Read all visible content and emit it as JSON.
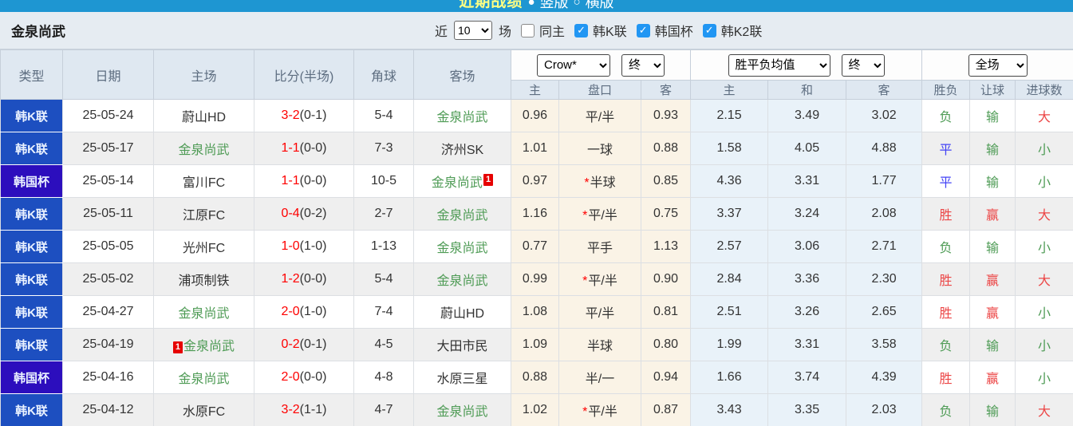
{
  "icons": {
    "check": "✓",
    "radio_on": "●",
    "radio_off": "○"
  },
  "topbar": {
    "title": "近期战绩",
    "option_vertical": "竖版",
    "option_horizontal": "横版"
  },
  "filterbar": {
    "team_title": "金泉尚武",
    "recent_label": "近",
    "recent_value": "10",
    "matches_label": "场",
    "same_home_label": "同主",
    "same_home_checked": false,
    "leagues": [
      {
        "label": "韩K联",
        "checked": true
      },
      {
        "label": "韩国杯",
        "checked": true
      },
      {
        "label": "韩K2联",
        "checked": true
      }
    ]
  },
  "table": {
    "star_glyph": "*",
    "headers": {
      "type": "类型",
      "date": "日期",
      "home": "主场",
      "score": "比分(半场)",
      "corner": "角球",
      "away": "客场",
      "asian_dropdown": "Crow*",
      "asian_stage_dropdown": "终",
      "euro_dropdown": "胜平负均值",
      "euro_stage_dropdown": "终",
      "result_dropdown": "全场",
      "asian_sub": [
        "主",
        "盘口",
        "客"
      ],
      "euro_sub": [
        "主",
        "和",
        "客"
      ],
      "result_sub": [
        "胜负",
        "让球",
        "进球数"
      ]
    },
    "colors": {
      "league_k1_bg": "#1d4fc0",
      "league_cup_bg": "#2c0ebd",
      "focus_team_green": "#4e9b55",
      "score_red": "#fe0000",
      "result_red": "#ec4545",
      "result_green": "#4e9b55",
      "result_blue": "#4343f5",
      "asian_col_bg": "#faf3e6",
      "euro_col_bg": "#e9f2f9",
      "topbar_blue": "#1e96d2"
    },
    "rows": [
      {
        "type": "韩K联",
        "type_class": "k1",
        "date": "25-05-24",
        "home": "蔚山HD",
        "home_focus": false,
        "home_badge": "",
        "score": "3-2",
        "half": "(0-1)",
        "corner": "5-4",
        "away": "金泉尚武",
        "away_focus": true,
        "away_badge": "",
        "asian_home": "0.96",
        "handicap_star": false,
        "handicap": "平/半",
        "asian_away": "0.93",
        "euro_home": "2.15",
        "euro_draw": "3.49",
        "euro_away": "3.02",
        "result_wdl": "负",
        "result_wdl_color": "green",
        "result_handicap": "输",
        "result_handicap_color": "green",
        "result_goals": "大",
        "result_goals_color": "red"
      },
      {
        "type": "韩K联",
        "type_class": "k1",
        "date": "25-05-17",
        "home": "金泉尚武",
        "home_focus": true,
        "home_badge": "",
        "score": "1-1",
        "half": "(0-0)",
        "corner": "7-3",
        "away": "济州SK",
        "away_focus": false,
        "away_badge": "",
        "asian_home": "1.01",
        "handicap_star": false,
        "handicap": "一球",
        "asian_away": "0.88",
        "euro_home": "1.58",
        "euro_draw": "4.05",
        "euro_away": "4.88",
        "result_wdl": "平",
        "result_wdl_color": "blue",
        "result_handicap": "输",
        "result_handicap_color": "green",
        "result_goals": "小",
        "result_goals_color": "green"
      },
      {
        "type": "韩国杯",
        "type_class": "cup",
        "date": "25-05-14",
        "home": "富川FC",
        "home_focus": false,
        "home_badge": "",
        "score": "1-1",
        "half": "(0-0)",
        "corner": "10-5",
        "away": "金泉尚武",
        "away_focus": true,
        "away_badge": "1",
        "asian_home": "0.97",
        "handicap_star": true,
        "handicap": "半球",
        "asian_away": "0.85",
        "euro_home": "4.36",
        "euro_draw": "3.31",
        "euro_away": "1.77",
        "result_wdl": "平",
        "result_wdl_color": "blue",
        "result_handicap": "输",
        "result_handicap_color": "green",
        "result_goals": "小",
        "result_goals_color": "green"
      },
      {
        "type": "韩K联",
        "type_class": "k1",
        "date": "25-05-11",
        "home": "江原FC",
        "home_focus": false,
        "home_badge": "",
        "score": "0-4",
        "half": "(0-2)",
        "corner": "2-7",
        "away": "金泉尚武",
        "away_focus": true,
        "away_badge": "",
        "asian_home": "1.16",
        "handicap_star": true,
        "handicap": "平/半",
        "asian_away": "0.75",
        "euro_home": "3.37",
        "euro_draw": "3.24",
        "euro_away": "2.08",
        "result_wdl": "胜",
        "result_wdl_color": "red",
        "result_handicap": "赢",
        "result_handicap_color": "red",
        "result_goals": "大",
        "result_goals_color": "red"
      },
      {
        "type": "韩K联",
        "type_class": "k1",
        "date": "25-05-05",
        "home": "光州FC",
        "home_focus": false,
        "home_badge": "",
        "score": "1-0",
        "half": "(1-0)",
        "corner": "1-13",
        "away": "金泉尚武",
        "away_focus": true,
        "away_badge": "",
        "asian_home": "0.77",
        "handicap_star": false,
        "handicap": "平手",
        "asian_away": "1.13",
        "euro_home": "2.57",
        "euro_draw": "3.06",
        "euro_away": "2.71",
        "result_wdl": "负",
        "result_wdl_color": "green",
        "result_handicap": "输",
        "result_handicap_color": "green",
        "result_goals": "小",
        "result_goals_color": "green"
      },
      {
        "type": "韩K联",
        "type_class": "k1",
        "date": "25-05-02",
        "home": "浦项制铁",
        "home_focus": false,
        "home_badge": "",
        "score": "1-2",
        "half": "(0-0)",
        "corner": "5-4",
        "away": "金泉尚武",
        "away_focus": true,
        "away_badge": "",
        "asian_home": "0.99",
        "handicap_star": true,
        "handicap": "平/半",
        "asian_away": "0.90",
        "euro_home": "2.84",
        "euro_draw": "3.36",
        "euro_away": "2.30",
        "result_wdl": "胜",
        "result_wdl_color": "red",
        "result_handicap": "赢",
        "result_handicap_color": "red",
        "result_goals": "大",
        "result_goals_color": "red"
      },
      {
        "type": "韩K联",
        "type_class": "k1",
        "date": "25-04-27",
        "home": "金泉尚武",
        "home_focus": true,
        "home_badge": "",
        "score": "2-0",
        "half": "(1-0)",
        "corner": "7-4",
        "away": "蔚山HD",
        "away_focus": false,
        "away_badge": "",
        "asian_home": "1.08",
        "handicap_star": false,
        "handicap": "平/半",
        "asian_away": "0.81",
        "euro_home": "2.51",
        "euro_draw": "3.26",
        "euro_away": "2.65",
        "result_wdl": "胜",
        "result_wdl_color": "red",
        "result_handicap": "赢",
        "result_handicap_color": "red",
        "result_goals": "小",
        "result_goals_color": "green"
      },
      {
        "type": "韩K联",
        "type_class": "k1",
        "date": "25-04-19",
        "home": "金泉尚武",
        "home_focus": true,
        "home_badge": "1",
        "score": "0-2",
        "half": "(0-1)",
        "corner": "4-5",
        "away": "大田市民",
        "away_focus": false,
        "away_badge": "",
        "asian_home": "1.09",
        "handicap_star": false,
        "handicap": "半球",
        "asian_away": "0.80",
        "euro_home": "1.99",
        "euro_draw": "3.31",
        "euro_away": "3.58",
        "result_wdl": "负",
        "result_wdl_color": "green",
        "result_handicap": "输",
        "result_handicap_color": "green",
        "result_goals": "小",
        "result_goals_color": "green"
      },
      {
        "type": "韩国杯",
        "type_class": "cup",
        "date": "25-04-16",
        "home": "金泉尚武",
        "home_focus": true,
        "home_badge": "",
        "score": "2-0",
        "half": "(0-0)",
        "corner": "4-8",
        "away": "水原三星",
        "away_focus": false,
        "away_badge": "",
        "asian_home": "0.88",
        "handicap_star": false,
        "handicap": "半/一",
        "asian_away": "0.94",
        "euro_home": "1.66",
        "euro_draw": "3.74",
        "euro_away": "4.39",
        "result_wdl": "胜",
        "result_wdl_color": "red",
        "result_handicap": "赢",
        "result_handicap_color": "red",
        "result_goals": "小",
        "result_goals_color": "green"
      },
      {
        "type": "韩K联",
        "type_class": "k1",
        "date": "25-04-12",
        "home": "水原FC",
        "home_focus": false,
        "home_badge": "",
        "score": "3-2",
        "half": "(1-1)",
        "corner": "4-7",
        "away": "金泉尚武",
        "away_focus": true,
        "away_badge": "",
        "asian_home": "1.02",
        "handicap_star": true,
        "handicap": "平/半",
        "asian_away": "0.87",
        "euro_home": "3.43",
        "euro_draw": "3.35",
        "euro_away": "2.03",
        "result_wdl": "负",
        "result_wdl_color": "green",
        "result_handicap": "输",
        "result_handicap_color": "green",
        "result_goals": "大",
        "result_goals_color": "red"
      }
    ]
  }
}
